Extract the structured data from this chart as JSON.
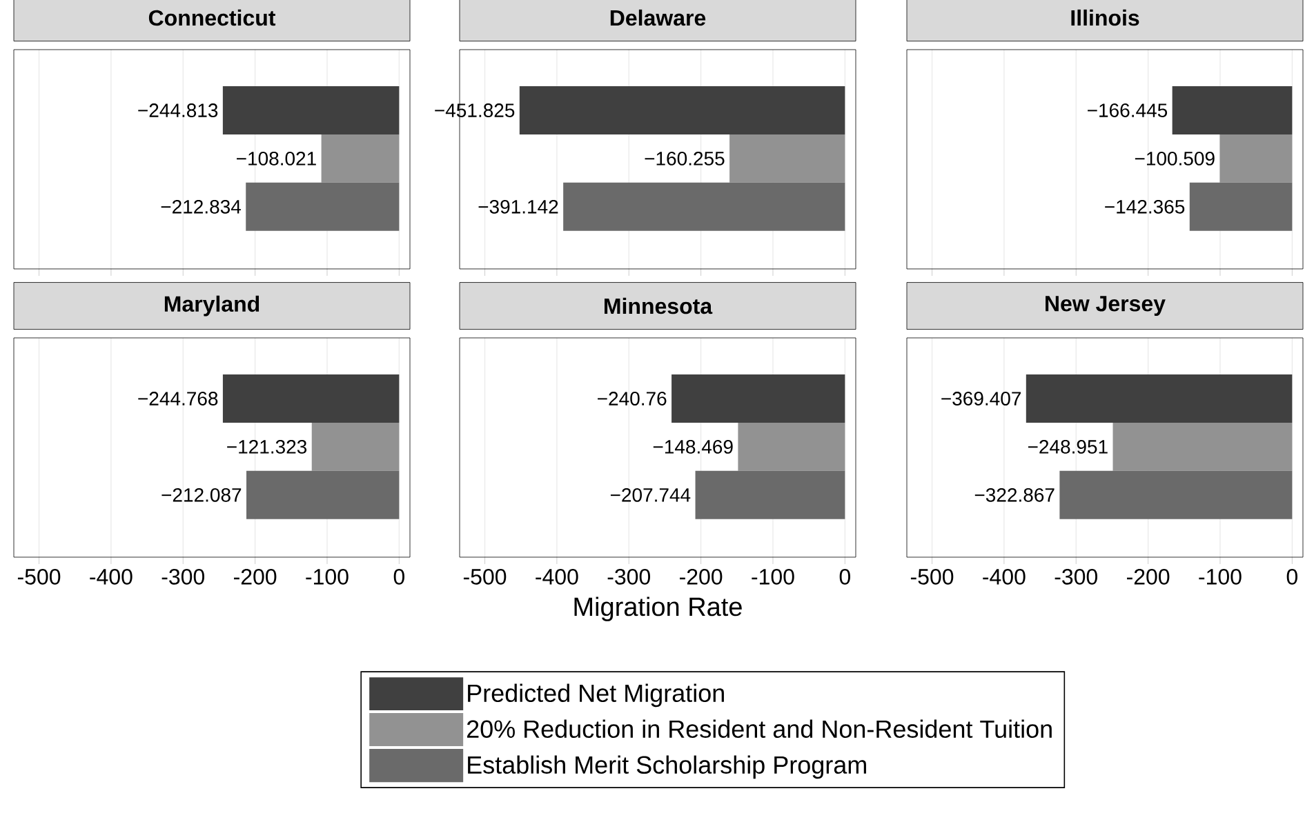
{
  "chart_data": [
    {
      "type": "bar",
      "orientation": "horizontal",
      "title": "Connecticut",
      "categories": [
        null
      ],
      "xlim": [
        -535,
        15
      ],
      "xticks": [
        -500,
        -400,
        -300,
        -200,
        -100,
        0
      ],
      "grid": "x",
      "tick_labels": false,
      "series": [
        {
          "color": "#404040",
          "values": [
            -244.813
          ],
          "value_labels": [
            "−244.813"
          ]
        },
        {
          "color": "#929292",
          "values": [
            -108.021
          ],
          "value_labels": [
            "−108.021"
          ]
        },
        {
          "color": "#6a6a6a",
          "values": [
            -212.834
          ],
          "value_labels": [
            "−212.834"
          ]
        }
      ]
    },
    {
      "type": "bar",
      "orientation": "horizontal",
      "title": "Delaware",
      "categories": [
        null
      ],
      "xlim": [
        -535,
        15
      ],
      "xticks": [
        -500,
        -400,
        -300,
        -200,
        -100,
        0
      ],
      "grid": "x",
      "tick_labels": false,
      "series": [
        {
          "color": "#404040",
          "values": [
            -451.825
          ],
          "value_labels": [
            "−451.825"
          ]
        },
        {
          "color": "#929292",
          "values": [
            -160.255
          ],
          "value_labels": [
            "−160.255"
          ]
        },
        {
          "color": "#6a6a6a",
          "values": [
            -391.142
          ],
          "value_labels": [
            "−391.142"
          ]
        }
      ]
    },
    {
      "type": "bar",
      "orientation": "horizontal",
      "title": "Illinois",
      "categories": [
        null
      ],
      "xlim": [
        -535,
        15
      ],
      "xticks": [
        -500,
        -400,
        -300,
        -200,
        -100,
        0
      ],
      "grid": "x",
      "tick_labels": false,
      "series": [
        {
          "color": "#404040",
          "values": [
            -166.445
          ],
          "value_labels": [
            "−166.445"
          ]
        },
        {
          "color": "#929292",
          "values": [
            -100.509
          ],
          "value_labels": [
            "−100.509"
          ]
        },
        {
          "color": "#6a6a6a",
          "values": [
            -142.365
          ],
          "value_labels": [
            "−142.365"
          ]
        }
      ]
    },
    {
      "type": "bar",
      "orientation": "horizontal",
      "title": "Maryland",
      "categories": [
        null
      ],
      "xlim": [
        -535,
        15
      ],
      "xticks": [
        -500,
        -400,
        -300,
        -200,
        -100,
        0
      ],
      "grid": "x",
      "tick_labels": "x",
      "series": [
        {
          "color": "#404040",
          "values": [
            -244.768
          ],
          "value_labels": [
            "−244.768"
          ]
        },
        {
          "color": "#929292",
          "values": [
            -121.323
          ],
          "value_labels": [
            "−121.323"
          ]
        },
        {
          "color": "#6a6a6a",
          "values": [
            -212.087
          ],
          "value_labels": [
            "−212.087"
          ]
        }
      ]
    },
    {
      "type": "bar",
      "orientation": "horizontal",
      "title": "Minnesota",
      "xlabel": "Migration Rate",
      "categories": [
        null
      ],
      "xlim": [
        -535,
        15
      ],
      "xticks": [
        -500,
        -400,
        -300,
        -200,
        -100,
        0
      ],
      "grid": "x",
      "tick_labels": "x",
      "series": [
        {
          "color": "#404040",
          "values": [
            -240.76
          ],
          "value_labels": [
            "−240.76"
          ]
        },
        {
          "color": "#929292",
          "values": [
            -148.469
          ],
          "value_labels": [
            "−148.469"
          ]
        },
        {
          "color": "#6a6a6a",
          "values": [
            -207.744
          ],
          "value_labels": [
            "−207.744"
          ]
        }
      ]
    },
    {
      "type": "bar",
      "orientation": "horizontal",
      "title": "New Jersey",
      "categories": [
        null
      ],
      "xlim": [
        -535,
        15
      ],
      "xticks": [
        -500,
        -400,
        -300,
        -200,
        -100,
        0
      ],
      "grid": "x",
      "tick_labels": "x",
      "legend": "bottom",
      "series": [
        {
          "name": "Predicted Net Migration",
          "color": "#404040",
          "values": [
            -369.407
          ],
          "value_labels": [
            "−369.407"
          ]
        },
        {
          "name": "20% Reduction in Resident and Non-Resident Tuition",
          "color": "#929292",
          "values": [
            -248.951
          ],
          "value_labels": [
            "−248.951"
          ]
        },
        {
          "name": "Establish Merit Scholarship Program",
          "color": "#6a6a6a",
          "values": [
            -322.867
          ],
          "value_labels": [
            "−322.867"
          ]
        }
      ]
    }
  ]
}
